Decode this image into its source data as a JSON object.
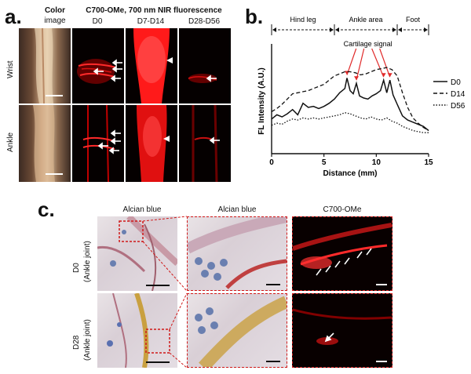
{
  "panel_a": {
    "letter": "a.",
    "col_color_l1": "Color",
    "col_color_l2": "image",
    "header_main": "C700-OMe, 700 nm NIR fluorescence",
    "cols": [
      "D0",
      "D7-D14",
      "D28-D56"
    ],
    "rows": [
      "Wrist",
      "Ankle"
    ]
  },
  "panel_b": {
    "letter": "b."
  },
  "panel_c": {
    "letter": "c.",
    "cols": [
      "Alcian blue",
      "Alcian blue",
      "C700-OMe"
    ],
    "row1_l1": "D0",
    "row1_l2": "(Ankle joint)",
    "row2_l1": "D28",
    "row2_l2": "(Ankle joint)"
  },
  "chart_data": {
    "type": "line",
    "xlabel": "Distance (mm)",
    "ylabel": "FL Intensity (A.U.)",
    "xlim": [
      0,
      15
    ],
    "xticks": [
      0,
      5,
      10,
      15
    ],
    "ylim": [
      0,
      1
    ],
    "regions": [
      {
        "label": "Hind leg",
        "x0": 0,
        "x1": 6
      },
      {
        "label": "Ankle area",
        "x0": 6,
        "x1": 12
      },
      {
        "label": "Foot",
        "x0": 12,
        "x1": 15
      }
    ],
    "annotation": "Cartilage signal",
    "annotation_points": [
      7.2,
      8.1,
      10.7,
      11.3
    ],
    "legend_position": "right",
    "series": [
      {
        "name": "D0",
        "style": "solid",
        "x": [
          0,
          0.5,
          1,
          1.5,
          2,
          2.5,
          3,
          3.5,
          4,
          4.5,
          5,
          5.5,
          6,
          6.5,
          7,
          7.2,
          7.5,
          7.8,
          8.1,
          8.4,
          8.8,
          9.2,
          9.6,
          10,
          10.4,
          10.7,
          11,
          11.3,
          11.6,
          12,
          12.5,
          13,
          13.5,
          14,
          14.5,
          15
        ],
        "y": [
          0.33,
          0.37,
          0.35,
          0.38,
          0.42,
          0.37,
          0.48,
          0.44,
          0.45,
          0.43,
          0.45,
          0.48,
          0.52,
          0.58,
          0.62,
          0.72,
          0.6,
          0.57,
          0.67,
          0.55,
          0.53,
          0.52,
          0.55,
          0.57,
          0.6,
          0.7,
          0.58,
          0.7,
          0.56,
          0.47,
          0.36,
          0.32,
          0.3,
          0.28,
          0.26,
          0.22
        ]
      },
      {
        "name": "D14",
        "style": "dashed",
        "x": [
          0,
          0.5,
          1,
          1.5,
          2,
          2.5,
          3,
          3.5,
          4,
          4.5,
          5,
          5.5,
          6,
          6.5,
          7,
          7.5,
          8,
          8.5,
          9,
          9.5,
          10,
          10.5,
          11,
          11.5,
          12,
          12.5,
          13,
          13.5,
          14,
          14.5,
          15
        ],
        "y": [
          0.4,
          0.43,
          0.47,
          0.52,
          0.57,
          0.58,
          0.59,
          0.6,
          0.62,
          0.64,
          0.66,
          0.7,
          0.74,
          0.76,
          0.78,
          0.78,
          0.77,
          0.75,
          0.76,
          0.78,
          0.8,
          0.81,
          0.82,
          0.8,
          0.74,
          0.58,
          0.44,
          0.34,
          0.29,
          0.25,
          0.22
        ]
      },
      {
        "name": "D56",
        "style": "dotted",
        "x": [
          0,
          0.5,
          1,
          1.5,
          2,
          2.5,
          3,
          3.5,
          4,
          4.5,
          5,
          5.5,
          6,
          6.5,
          7,
          7.5,
          8,
          8.5,
          9,
          9.5,
          10,
          10.5,
          11,
          11.5,
          12,
          12.5,
          13,
          13.5,
          14,
          14.5,
          15
        ],
        "y": [
          0.27,
          0.29,
          0.28,
          0.31,
          0.33,
          0.32,
          0.34,
          0.33,
          0.34,
          0.33,
          0.34,
          0.35,
          0.36,
          0.37,
          0.39,
          0.38,
          0.36,
          0.34,
          0.33,
          0.35,
          0.33,
          0.32,
          0.34,
          0.31,
          0.29,
          0.26,
          0.24,
          0.22,
          0.21,
          0.2,
          0.2
        ]
      }
    ]
  }
}
